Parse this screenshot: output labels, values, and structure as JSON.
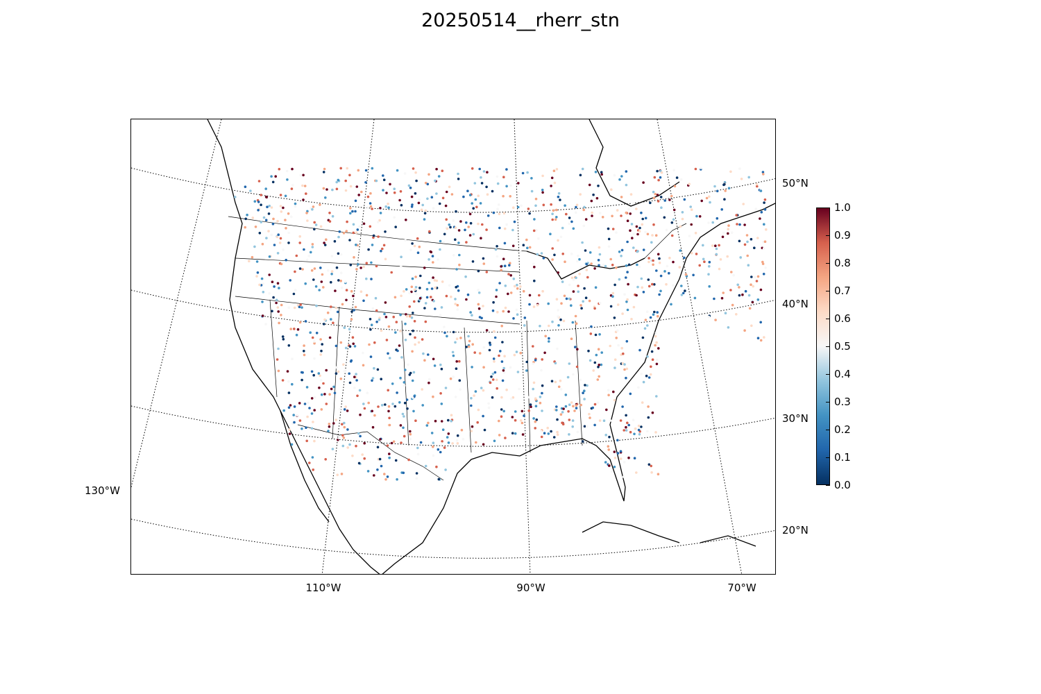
{
  "title": "20250514__rherr_stn",
  "lat_labels": [
    "50°N",
    "40°N",
    "30°N",
    "20°N"
  ],
  "lon_labels": [
    "130°W",
    "110°W",
    "90°W",
    "70°W"
  ],
  "colorbar": {
    "ticks": [
      "0.0",
      "0.1",
      "0.2",
      "0.3",
      "0.4",
      "0.5",
      "0.6",
      "0.7",
      "0.8",
      "0.9",
      "1.0"
    ],
    "min": 0.0,
    "max": 1.0,
    "colormap": "RdBu_r",
    "colors": [
      "#053061",
      "#2166ac",
      "#4393c3",
      "#92c5de",
      "#f7f7f7",
      "#fddbc7",
      "#f4a582",
      "#d6604d",
      "#67001f"
    ]
  },
  "map": {
    "projection": "lambert-conformal",
    "region": "CONUS",
    "graticule": "dotted",
    "marker": "station-dots"
  }
}
